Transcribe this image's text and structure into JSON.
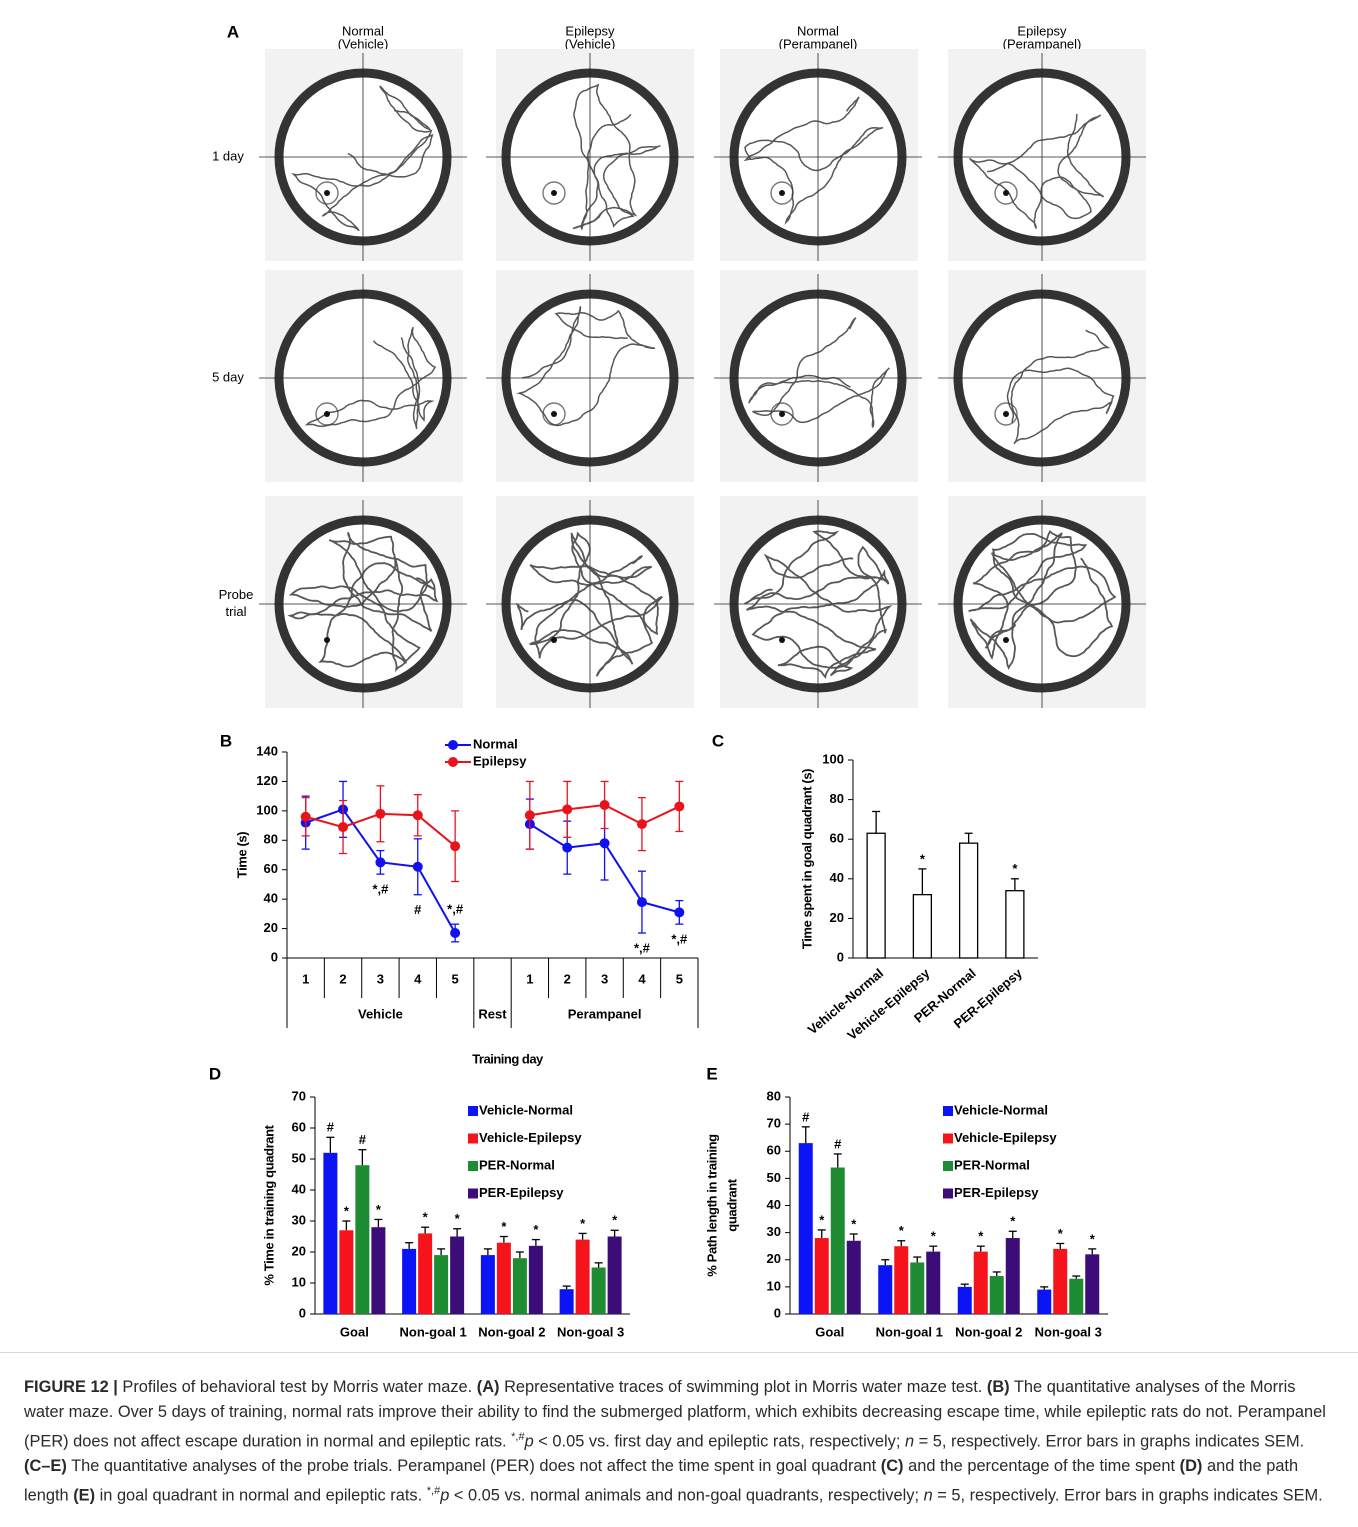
{
  "figure": {
    "panel_a": {
      "label": "A",
      "columns": [
        [
          "Normal",
          "(Vehicle)"
        ],
        [
          "Epilepsy",
          "(Vehicle)"
        ],
        [
          "Normal",
          "(Perampanel)"
        ],
        [
          "Epilepsy",
          "(Perampanel)"
        ]
      ],
      "rows": [
        [
          "1 day"
        ],
        [
          "5 day"
        ],
        [
          "Probe",
          "trial"
        ]
      ]
    },
    "caption": {
      "parts": [
        "FIGURE 12 |",
        " Profiles of behavioral test by Morris water maze. ",
        "(A)",
        " Representative traces of swimming plot in Morris water maze test. ",
        "(B)",
        " The quantitative analyses of the Morris water maze. Over 5 days of training, normal rats improve their ability to find the submerged platform, which exhibits decreasing escape time, while epileptic rats do not. Perampanel (PER) does not affect escape duration in normal and epileptic rats. ",
        "*,#",
        "p",
        " < 0.05 vs. first day and epileptic rats, respectively; ",
        "n",
        " = 5, respectively. Error bars in graphs indicates SEM. ",
        "(C–E)",
        " The quantitative analyses of the probe trials. Perampanel (PER) does not affect the time spent in goal quadrant ",
        "(C)",
        " and the percentage of the time spent ",
        "(D)",
        " and the path length ",
        "(E)",
        " in goal quadrant in normal and epileptic rats. ",
        "*,#",
        "p",
        " < 0.05 vs. normal animals and non-goal quadrants, respectively; ",
        "n",
        " = 5, respectively. Error bars in graphs indicates SEM."
      ]
    }
  },
  "chart_data": [
    {
      "type": "line",
      "panel": "B",
      "categories": [
        "1",
        "2",
        "3",
        "4",
        "5",
        null,
        "1",
        "2",
        "3",
        "4",
        "5"
      ],
      "groups": [
        "Vehicle",
        "Rest",
        "Perampanel"
      ],
      "xlabel": "Training day",
      "ylabel": [
        "Time (s)"
      ],
      "ylim": [
        0,
        140
      ],
      "yticks": [
        0,
        20,
        40,
        60,
        80,
        100,
        120,
        140
      ],
      "legend": "top",
      "series": [
        {
          "name": "Normal",
          "color": "#1010f0",
          "values": [
            92,
            101,
            65,
            62,
            17,
            null,
            91,
            75,
            78,
            38,
            31
          ],
          "errors": [
            18,
            19,
            8,
            19,
            6,
            null,
            17,
            18,
            25,
            21,
            8
          ],
          "annotations": [
            null,
            null,
            "*,#",
            "#",
            "*,#",
            null,
            null,
            null,
            null,
            "*,#",
            "*,#"
          ]
        },
        {
          "name": "Epilepsy",
          "color": "#e8141c",
          "values": [
            96,
            89,
            98,
            97,
            76,
            null,
            97,
            101,
            104,
            91,
            103
          ],
          "errors": [
            13,
            18,
            19,
            14,
            24,
            null,
            23,
            19,
            16,
            18,
            17
          ]
        }
      ]
    },
    {
      "type": "bar",
      "panel": "C",
      "categories": [
        "Vehicle-Normal",
        "Vehicle-Epilepsy",
        "PER-Normal",
        "PER-Epilepsy"
      ],
      "values": [
        63,
        32,
        58,
        34
      ],
      "errors": [
        11,
        13,
        5,
        6
      ],
      "annotations": [
        null,
        "*",
        null,
        "*"
      ],
      "color": "#ffffff",
      "edgecolor": "#000000",
      "ylabel": [
        "Time spent in goal quadrant (s)"
      ],
      "ylim": [
        0,
        100
      ],
      "yticks": [
        0,
        20,
        40,
        60,
        80,
        100
      ]
    },
    {
      "type": "grouped_bar",
      "panel": "D",
      "categories": [
        "Goal",
        "Non-goal 1",
        "Non-goal 2",
        "Non-goal 3"
      ],
      "ylabel": [
        "% Time in training quadrant"
      ],
      "ylim": [
        0,
        70
      ],
      "yticks": [
        0,
        10,
        20,
        30,
        40,
        50,
        60,
        70
      ],
      "legend": "top-right",
      "series": [
        {
          "name": "Vehicle-Normal",
          "color": "#0a14f5",
          "values": [
            52,
            21,
            19,
            8
          ],
          "errors": [
            5,
            2,
            2,
            1
          ],
          "annotations": [
            "#",
            null,
            null,
            null
          ]
        },
        {
          "name": "Vehicle-Epilepsy",
          "color": "#f5141c",
          "values": [
            27,
            26,
            23,
            24
          ],
          "errors": [
            3,
            2,
            2,
            2
          ],
          "annotations": [
            "*",
            "*",
            "*",
            "*"
          ]
        },
        {
          "name": "PER-Normal",
          "color": "#1e8c32",
          "values": [
            48,
            19,
            18,
            15
          ],
          "errors": [
            5,
            2,
            2,
            1.5
          ],
          "annotations": [
            "#",
            null,
            null,
            null
          ]
        },
        {
          "name": "PER-Epilepsy",
          "color": "#3c0c78",
          "values": [
            28,
            25,
            22,
            25
          ],
          "errors": [
            2.5,
            2.5,
            2,
            2
          ],
          "annotations": [
            "*",
            "*",
            "*",
            "*"
          ]
        }
      ]
    },
    {
      "type": "grouped_bar",
      "panel": "E",
      "categories": [
        "Goal",
        "Non-goal 1",
        "Non-goal 2",
        "Non-goal 3"
      ],
      "ylabel": [
        "% Path length in training",
        "quadrant"
      ],
      "ylim": [
        0,
        80
      ],
      "yticks": [
        0,
        10,
        20,
        30,
        40,
        50,
        60,
        70,
        80
      ],
      "legend": "top-right",
      "series": [
        {
          "name": "Vehicle-Normal",
          "color": "#0a14f5",
          "values": [
            63,
            18,
            10,
            9
          ],
          "errors": [
            6,
            2,
            1,
            1
          ],
          "annotations": [
            "#",
            null,
            null,
            null
          ]
        },
        {
          "name": "Vehicle-Epilepsy",
          "color": "#f5141c",
          "values": [
            28,
            25,
            23,
            24
          ],
          "errors": [
            3,
            2,
            2,
            2
          ],
          "annotations": [
            "*",
            "*",
            "*",
            "*"
          ]
        },
        {
          "name": "PER-Normal",
          "color": "#1e8c32",
          "values": [
            54,
            19,
            14,
            13
          ],
          "errors": [
            5,
            2,
            1.5,
            1
          ],
          "annotations": [
            "#",
            null,
            null,
            null
          ]
        },
        {
          "name": "PER-Epilepsy",
          "color": "#3c0c78",
          "values": [
            27,
            23,
            28,
            22
          ],
          "errors": [
            2.5,
            2,
            2.5,
            2
          ],
          "annotations": [
            "*",
            "*",
            "*",
            "*"
          ]
        }
      ]
    }
  ]
}
